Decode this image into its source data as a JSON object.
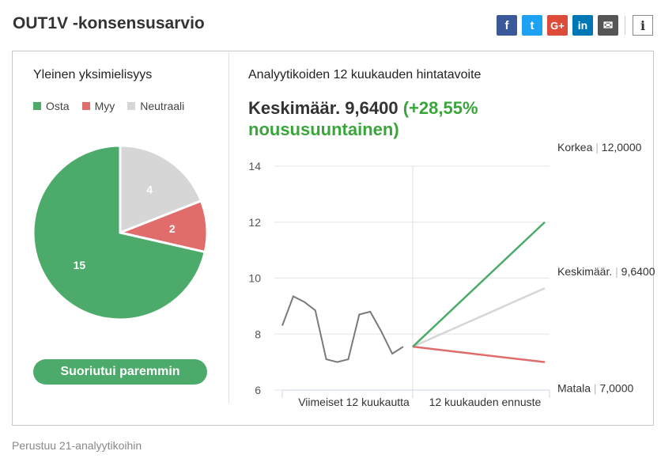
{
  "title": "OUT1V -konsensusarvio",
  "share": {
    "icons": [
      "facebook-icon",
      "twitter-icon",
      "google-plus-icon",
      "linkedin-icon",
      "mail-icon"
    ],
    "facebook": "f",
    "twitter": "t",
    "google": "G+",
    "linkedin": "in",
    "mail": "✉",
    "info": "i"
  },
  "consensus": {
    "title": "Yleinen yksimielisyys",
    "legend": [
      {
        "label": "Osta",
        "color": "#4caa6a"
      },
      {
        "label": "Myy",
        "color": "#e06c6c"
      },
      {
        "label": "Neutraali",
        "color": "#d6d6d6"
      }
    ],
    "rating": "Suoriutui paremmin"
  },
  "target": {
    "title": "Analyytikoiden 12 kuukauden hintatavoite",
    "avg_label": "Keskimäär. 9,6400",
    "avg_change": "(+28,55%",
    "avg_direction": "noususuuntainen)"
  },
  "footer": "Perustuu 21-analyytikoihin",
  "chart_data": [
    {
      "type": "pie",
      "categories": [
        "Osta",
        "Myy",
        "Neutraali"
      ],
      "values": [
        15,
        2,
        4
      ],
      "colors": [
        "#4caa6a",
        "#e06c6c",
        "#d6d6d6"
      ]
    },
    {
      "type": "line",
      "ylim": [
        6,
        14
      ],
      "yticks": [
        6,
        8,
        10,
        12,
        14
      ],
      "xlabels": [
        "Viimeiset 12 kuukautta",
        "12 kuukauden ennuste"
      ],
      "history": [
        8.3,
        9.35,
        9.15,
        8.85,
        7.1,
        7.0,
        7.1,
        8.7,
        8.8,
        8.1,
        7.3,
        7.55
      ],
      "forecast_start": 7.55,
      "series": [
        {
          "label": "Korkea",
          "value_label": "12,0000",
          "value": 12.0,
          "color": "#4caa6a"
        },
        {
          "label": "Keskimäär.",
          "value_label": "9,6400",
          "value": 9.64,
          "color": "#d6d6d6"
        },
        {
          "label": "Matala",
          "value_label": "7,0000",
          "value": 7.0,
          "color": "#e06c6c"
        }
      ]
    }
  ]
}
